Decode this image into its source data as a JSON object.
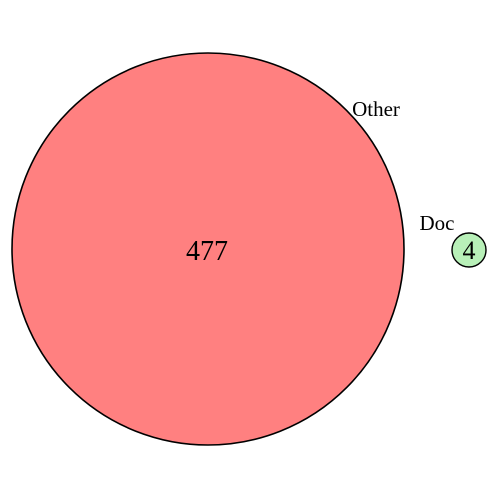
{
  "diagram": {
    "type": "venn",
    "sets": [
      {
        "key": "other",
        "label": "Other",
        "count": "477",
        "color": "#ff8080",
        "stroke": "#000000"
      },
      {
        "key": "doc",
        "label": "Doc",
        "count": "4",
        "color": "#b8f0b8",
        "stroke": "#000000"
      }
    ]
  }
}
